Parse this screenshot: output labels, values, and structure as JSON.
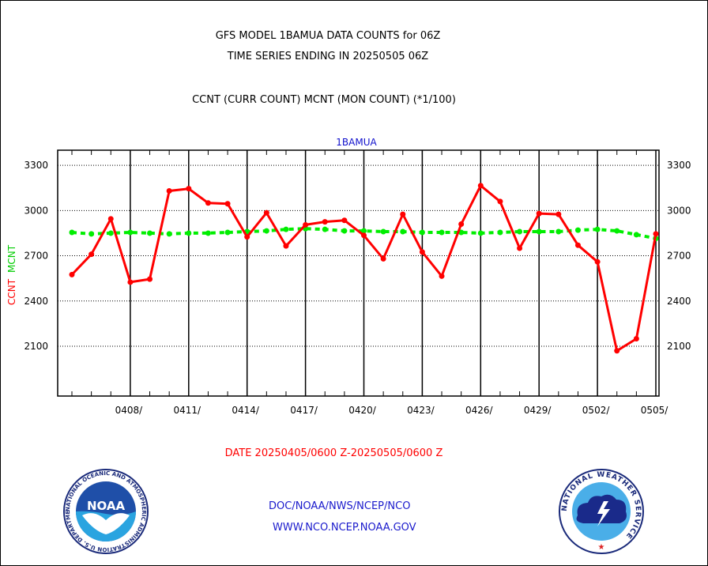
{
  "header": {
    "title_line1": "GFS MODEL 1BAMUA DATA COUNTS for 06Z",
    "title_line2": "TIME SERIES ENDING IN 20250505 06Z",
    "subtitle": "CCNT (CURR COUNT) MCNT (MON COUNT) (*1/100)"
  },
  "footer": {
    "date_range": "DATE 20250405/0600 Z-20250505/0600 Z",
    "org_line": "DOC/NOAA/NWS/NCEP/NCO",
    "url_line": "WWW.NCO.NCEP.NOAA.GOV"
  },
  "logos": {
    "noaa": {
      "name": "NOAA",
      "ring_text": "NATIONAL OCEANIC AND ATMOSPHERIC ADMINISTRATION U.S. DEPARTMENT OF COMMERCE"
    },
    "nws": {
      "ring_text": "NATIONAL WEATHER SERVICE"
    }
  },
  "colors": {
    "ccnt": "#ff0000",
    "mcnt": "#00ee00",
    "panel_title": "#1010cc",
    "footer_blue": "#1a1acc",
    "grid": "#000000"
  },
  "chart_data": {
    "type": "line",
    "panel_title": "1BAMUA",
    "ylabel_ccnt": "CCNT",
    "ylabel_mcnt": "MCNT",
    "ylim": [
      1770,
      3400
    ],
    "yticks": [
      2100,
      2400,
      2700,
      3000,
      3300
    ],
    "xlim": [
      0,
      30
    ],
    "xticks": [
      {
        "x": 3,
        "label": "0408/"
      },
      {
        "x": 6,
        "label": "0411/"
      },
      {
        "x": 9,
        "label": "0414/"
      },
      {
        "x": 12,
        "label": "0417/"
      },
      {
        "x": 15,
        "label": "0420/"
      },
      {
        "x": 18,
        "label": "0423/"
      },
      {
        "x": 21,
        "label": "0426/"
      },
      {
        "x": 24,
        "label": "0429/"
      },
      {
        "x": 27,
        "label": "0502/"
      },
      {
        "x": 30,
        "label": "0505/"
      }
    ],
    "grid": true,
    "series": [
      {
        "name": "CCNT",
        "color": "#ff0000",
        "x": [
          0,
          1,
          2,
          3,
          4,
          5,
          6,
          7,
          8,
          9,
          10,
          11,
          12,
          13,
          14,
          15,
          16,
          17,
          18,
          19,
          20,
          21,
          22,
          23,
          24,
          25,
          26,
          27,
          28,
          29,
          30
        ],
        "values": [
          2575,
          2710,
          2945,
          2525,
          2545,
          3130,
          3145,
          3050,
          3045,
          2825,
          2985,
          2765,
          2905,
          2925,
          2935,
          2835,
          2680,
          2975,
          2725,
          2565,
          2910,
          3165,
          3060,
          2750,
          2980,
          2975,
          2770,
          2660,
          2070,
          2150,
          2845
        ]
      },
      {
        "name": "MCNT",
        "color": "#00ee00",
        "x": [
          0,
          1,
          2,
          3,
          4,
          5,
          6,
          7,
          8,
          9,
          10,
          11,
          12,
          13,
          14,
          15,
          16,
          17,
          18,
          19,
          20,
          21,
          22,
          23,
          24,
          25,
          26,
          27,
          28,
          29,
          30
        ],
        "values": [
          2855,
          2845,
          2850,
          2855,
          2850,
          2845,
          2850,
          2850,
          2855,
          2860,
          2865,
          2875,
          2880,
          2875,
          2865,
          2865,
          2860,
          2860,
          2855,
          2855,
          2855,
          2850,
          2855,
          2860,
          2860,
          2860,
          2870,
          2875,
          2865,
          2840,
          2815
        ]
      }
    ]
  }
}
